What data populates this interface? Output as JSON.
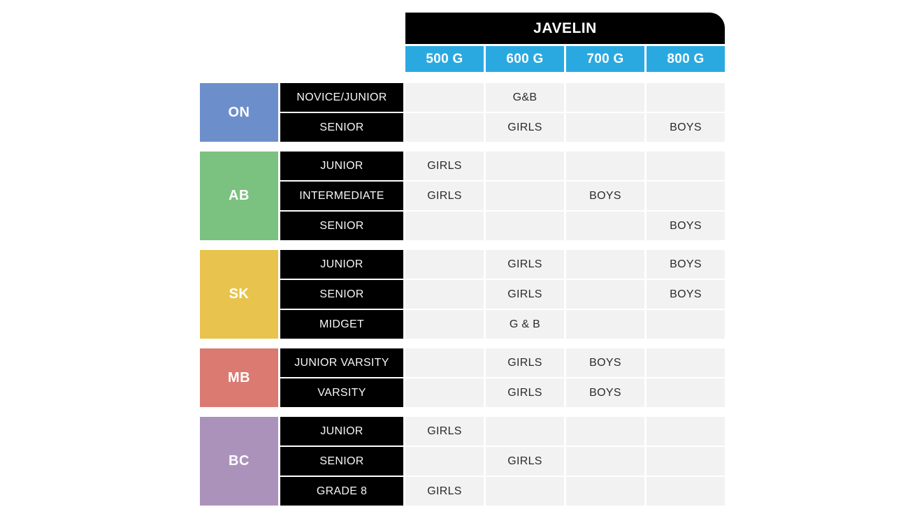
{
  "chart_data": {
    "type": "table",
    "title": "JAVELIN",
    "columns": [
      "500 G",
      "600 G",
      "700 G",
      "800 G"
    ],
    "groups": [
      {
        "province": "ON",
        "color": "#6C8FCC",
        "rows": [
          {
            "label": "NOVICE/JUNIOR",
            "cells": [
              "",
              "G&B",
              "",
              ""
            ]
          },
          {
            "label": "SENIOR",
            "cells": [
              "",
              "GIRLS",
              "",
              "BOYS"
            ]
          }
        ]
      },
      {
        "province": "AB",
        "color": "#7BC17F",
        "rows": [
          {
            "label": "JUNIOR",
            "cells": [
              "GIRLS",
              "",
              "",
              ""
            ]
          },
          {
            "label": "INTERMEDIATE",
            "cells": [
              "GIRLS",
              "",
              "BOYS",
              ""
            ]
          },
          {
            "label": "SENIOR",
            "cells": [
              "",
              "",
              "",
              "BOYS"
            ]
          }
        ]
      },
      {
        "province": "SK",
        "color": "#E8C44F",
        "rows": [
          {
            "label": "JUNIOR",
            "cells": [
              "",
              "GIRLS",
              "",
              "BOYS"
            ]
          },
          {
            "label": "SENIOR",
            "cells": [
              "",
              "GIRLS",
              "",
              "BOYS"
            ]
          },
          {
            "label": "MIDGET",
            "cells": [
              "",
              "G & B",
              "",
              ""
            ]
          }
        ]
      },
      {
        "province": "MB",
        "color": "#DA7A70",
        "rows": [
          {
            "label": "JUNIOR VARSITY",
            "cells": [
              "",
              "GIRLS",
              "BOYS",
              ""
            ]
          },
          {
            "label": "VARSITY",
            "cells": [
              "",
              "GIRLS",
              "BOYS",
              ""
            ]
          }
        ]
      },
      {
        "province": "BC",
        "color": "#AB92BB",
        "rows": [
          {
            "label": "JUNIOR",
            "cells": [
              "GIRLS",
              "",
              "",
              ""
            ]
          },
          {
            "label": "SENIOR",
            "cells": [
              "",
              "GIRLS",
              "",
              ""
            ]
          },
          {
            "label": "GRADE 8",
            "cells": [
              "GIRLS",
              "",
              "",
              ""
            ]
          }
        ]
      }
    ],
    "colors": {
      "header_bg": "#000000",
      "header_text": "#FFFFFF",
      "weight_bg": "#2AA9E1",
      "weight_text": "#FFFFFF",
      "label_bg": "#000000",
      "label_text": "#F7F7F7",
      "cell_bg": "#F2F2F2",
      "cell_text": "#2B2B2B",
      "page_bg": "#FFFFFF"
    },
    "layout": {
      "legend": "none",
      "grid": "gapped-cells"
    }
  }
}
